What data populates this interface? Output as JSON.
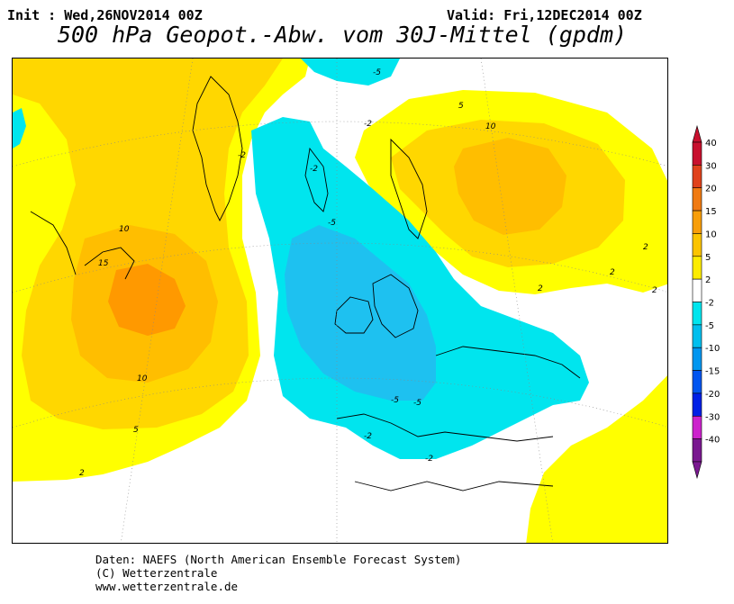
{
  "header": {
    "init": "Init : Wed,26NOV2014 00Z",
    "valid": "Valid: Fri,12DEC2014 00Z",
    "title": "500 hPa Geopot.-Abw. vom 30J-Mittel (gpdm)"
  },
  "legend": {
    "levels": [
      "40",
      "30",
      "20",
      "15",
      "10",
      "5",
      "2",
      "-2",
      "-5",
      "-10",
      "-15",
      "-20",
      "-30",
      "-40"
    ],
    "colors": [
      "#c8102e",
      "#e0421c",
      "#f07a12",
      "#f89e0a",
      "#fbc400",
      "#fdec00",
      "#ffffff",
      "#00e5ee",
      "#00bfee",
      "#0096f0",
      "#0055f0",
      "#0020e6",
      "#cc22cc",
      "#7a1890"
    ]
  },
  "map": {
    "contour_labels": [
      "-5",
      "-2",
      "5",
      "10",
      "2",
      "2",
      "-2",
      "10",
      "15",
      "10",
      "5",
      "2",
      "-5",
      "-5",
      "-5",
      "-2",
      "-2",
      "-2",
      "2",
      "2"
    ],
    "field_colors": {
      "positive_2_5": "#ffff00",
      "positive_5_10": "#ffd700",
      "positive_10_15": "#ffbe00",
      "positive_15_20": "#ff9900",
      "negative_2_5": "#00e5ee",
      "negative_5_10": "#1ec1f0"
    }
  },
  "footer": {
    "line1": "Daten: NAEFS (North American Ensemble Forecast System)",
    "line2": "(C) Wetterzentrale",
    "line3": "www.wetterzentrale.de"
  }
}
